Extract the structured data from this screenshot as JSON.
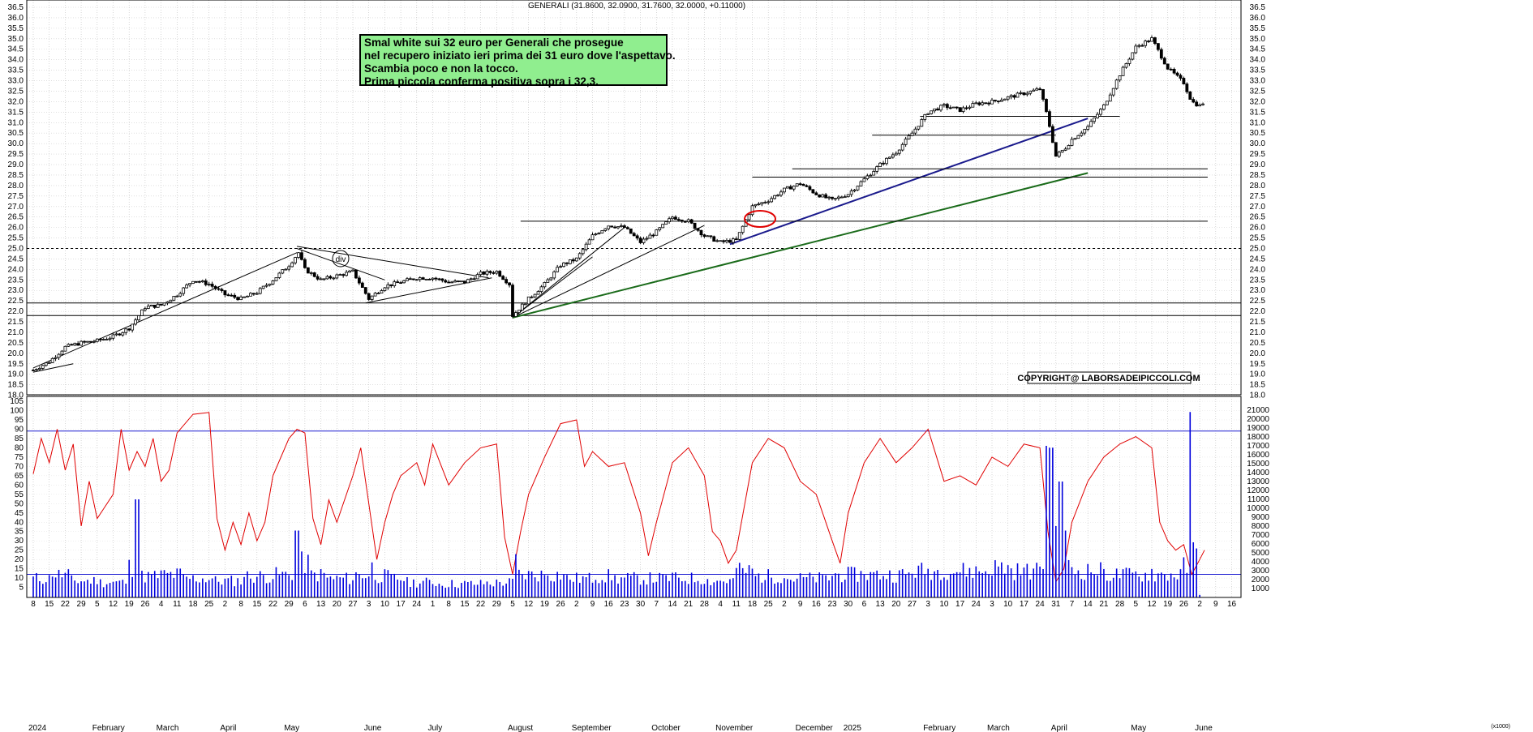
{
  "chart_title": "GENERALI (31.8600, 32.0900, 31.7600, 32.0000, +0.11000)",
  "note": {
    "lines": [
      "Smal white sui 32 euro per Generali che prosegue",
      "nel recupero iniziato ieri prima dei 31 euro dove l'aspettavo.",
      "Scambia poco e non la tocco.",
      "Prima piccola conferma positiva sopra i 32,3."
    ]
  },
  "copyright": "COPYRIGHT@ LABORSADEIPICCOLI.COM",
  "div_label": "div",
  "volume_unit": "(x1000)",
  "colors": {
    "candle": "#000000",
    "support_green": "#1a6b1a",
    "support_blue": "#1a1a8c",
    "rsi": "#e00000",
    "volume": "#0000dd",
    "note_bg": "#90ee8f",
    "marker": "#e00000"
  },
  "chart_data": {
    "type": "candlestick",
    "price_axis": {
      "ticks": [
        "36.5",
        "36.0",
        "35.5",
        "35.0",
        "34.5",
        "34.0",
        "33.5",
        "33.0",
        "32.5",
        "32.0",
        "31.5",
        "31.0",
        "30.5",
        "30.0",
        "29.5",
        "29.0",
        "28.5",
        "28.0",
        "27.5",
        "27.0",
        "26.5",
        "26.0",
        "25.5",
        "25.0",
        "24.5",
        "24.0",
        "23.5",
        "23.0",
        "22.5",
        "22.0",
        "21.5",
        "21.0",
        "20.5",
        "20.0",
        "19.5",
        "19.0",
        "18.5",
        "18.0"
      ],
      "range": [
        17.75,
        36.75
      ]
    },
    "oscillator_axis": {
      "ticks": [
        "105",
        "100",
        "95",
        "90",
        "85",
        "80",
        "75",
        "70",
        "65",
        "60",
        "55",
        "50",
        "45",
        "40",
        "35",
        "30",
        "25",
        "20",
        "15",
        "10",
        "5"
      ],
      "range": [
        2,
        107
      ],
      "upper_level": 89,
      "lower_level": 12
    },
    "volume_axis": {
      "ticks": [
        "21000",
        "20000",
        "19000",
        "18000",
        "17000",
        "16000",
        "15000",
        "14000",
        "13000",
        "12000",
        "11000",
        "10000",
        "9000",
        "8000",
        "7000",
        "6000",
        "5000",
        "4000",
        "3000",
        "2000",
        "1000"
      ],
      "range": [
        0,
        21500
      ]
    },
    "time_axis": {
      "day_labels": [
        "8",
        "15",
        "22",
        "29",
        "5",
        "12",
        "19",
        "26",
        "4",
        "11",
        "18",
        "25",
        "2",
        "8",
        "15",
        "22",
        "29",
        "6",
        "13",
        "20",
        "27",
        "3",
        "10",
        "17",
        "24",
        "1",
        "8",
        "15",
        "22",
        "29",
        "5",
        "12",
        "19",
        "26",
        "2",
        "9",
        "16",
        "23",
        "30",
        "7",
        "14",
        "21",
        "28",
        "4",
        "11",
        "18",
        "25",
        "2",
        "9",
        "16",
        "23",
        "30",
        "6",
        "13",
        "20",
        "27",
        "3",
        "10",
        "17",
        "24",
        "3",
        "10",
        "17",
        "24",
        "31",
        "7",
        "14",
        "21",
        "28",
        "5",
        "12",
        "19",
        "26",
        "2",
        "9",
        "16"
      ],
      "month_labels": [
        {
          "label": "2024",
          "day_index": 0
        },
        {
          "label": "February",
          "day_index": 4
        },
        {
          "label": "March",
          "day_index": 8
        },
        {
          "label": "April",
          "day_index": 12
        },
        {
          "label": "May",
          "day_index": 16
        },
        {
          "label": "June",
          "day_index": 21
        },
        {
          "label": "July",
          "day_index": 25
        },
        {
          "label": "August",
          "day_index": 30
        },
        {
          "label": "September",
          "day_index": 34
        },
        {
          "label": "October",
          "day_index": 39
        },
        {
          "label": "November",
          "day_index": 43
        },
        {
          "label": "December",
          "day_index": 48
        },
        {
          "label": "2025",
          "day_index": 51
        },
        {
          "label": "February",
          "day_index": 56
        },
        {
          "label": "March",
          "day_index": 60
        },
        {
          "label": "April",
          "day_index": 64
        },
        {
          "label": "May",
          "day_index": 69
        },
        {
          "label": "June",
          "day_index": 73
        }
      ]
    },
    "horizontal_levels": [
      25.0,
      22.4,
      21.8
    ],
    "price_path": [
      [
        0,
        19.2
      ],
      [
        1,
        19.6
      ],
      [
        2,
        20.3
      ],
      [
        3,
        20.5
      ],
      [
        4,
        20.6
      ],
      [
        5,
        20.8
      ],
      [
        6,
        21.2
      ],
      [
        7,
        22.2
      ],
      [
        8,
        22.3
      ],
      [
        9,
        22.8
      ],
      [
        10,
        23.5
      ],
      [
        11,
        23.3
      ],
      [
        12,
        22.8
      ],
      [
        13,
        22.6
      ],
      [
        14,
        22.9
      ],
      [
        15,
        23.5
      ],
      [
        16,
        24.2
      ],
      [
        16.6,
        24.8
      ],
      [
        17,
        24.0
      ],
      [
        18,
        23.5
      ],
      [
        19,
        23.7
      ],
      [
        20,
        23.9
      ],
      [
        21,
        22.6
      ],
      [
        22,
        23.2
      ],
      [
        23,
        23.4
      ],
      [
        24,
        23.6
      ],
      [
        25,
        23.6
      ],
      [
        26,
        23.4
      ],
      [
        27,
        23.4
      ],
      [
        28,
        23.8
      ],
      [
        29,
        23.9
      ],
      [
        29.8,
        23.3
      ],
      [
        30,
        21.8
      ],
      [
        31,
        22.6
      ],
      [
        32,
        23.3
      ],
      [
        33,
        24.2
      ],
      [
        34,
        24.5
      ],
      [
        35,
        25.6
      ],
      [
        36,
        26.1
      ],
      [
        37,
        26.0
      ],
      [
        38,
        25.3
      ],
      [
        39,
        25.8
      ],
      [
        40,
        26.5
      ],
      [
        41,
        26.3
      ],
      [
        42,
        25.6
      ],
      [
        43,
        25.3
      ],
      [
        44,
        25.4
      ],
      [
        45,
        27.0
      ],
      [
        46,
        27.3
      ],
      [
        47,
        27.8
      ],
      [
        48,
        28.1
      ],
      [
        49,
        27.6
      ],
      [
        50,
        27.3
      ],
      [
        51,
        27.6
      ],
      [
        52,
        28.3
      ],
      [
        53,
        29.0
      ],
      [
        54,
        29.6
      ],
      [
        55,
        30.5
      ],
      [
        56,
        31.5
      ],
      [
        57,
        31.8
      ],
      [
        58,
        31.6
      ],
      [
        59,
        31.9
      ],
      [
        60,
        32.0
      ],
      [
        61,
        32.2
      ],
      [
        62,
        32.4
      ],
      [
        63,
        32.6
      ],
      [
        63.5,
        31.2
      ],
      [
        64,
        29.4
      ],
      [
        64.6,
        29.8
      ],
      [
        65,
        30.2
      ],
      [
        66,
        30.8
      ],
      [
        67,
        31.8
      ],
      [
        68,
        33.3
      ],
      [
        69,
        34.6
      ],
      [
        70,
        35.0
      ],
      [
        71,
        33.6
      ],
      [
        72,
        32.9
      ],
      [
        72.5,
        32.0
      ],
      [
        73,
        31.8
      ],
      [
        73.3,
        32.0
      ]
    ],
    "trend_lines": [
      {
        "color": "#000000",
        "from": [
          0,
          19.1
        ],
        "to": [
          2.5,
          19.5
        ]
      },
      {
        "color": "#000000",
        "from": [
          0,
          19.3
        ],
        "to": [
          16.5,
          24.8
        ]
      },
      {
        "color": "#000000",
        "from": [
          16.5,
          25.1
        ],
        "to": [
          28.5,
          23.6
        ]
      },
      {
        "color": "#000000",
        "from": [
          16.5,
          25.0
        ],
        "to": [
          22,
          23.5
        ]
      },
      {
        "color": "#000000",
        "from": [
          20.8,
          22.4
        ],
        "to": [
          28.7,
          23.6
        ]
      },
      {
        "color": "#000000",
        "from": [
          30,
          21.7
        ],
        "to": [
          37,
          26.0
        ]
      },
      {
        "color": "#000000",
        "from": [
          30,
          21.7
        ],
        "to": [
          42,
          26.1
        ]
      },
      {
        "color": "#000000",
        "from": [
          30,
          21.7
        ],
        "to": [
          35,
          24.6
        ]
      },
      {
        "color": "#1a1a8c",
        "from": [
          43.6,
          25.2
        ],
        "to": [
          66,
          31.2
        ]
      },
      {
        "color": "#1a6b1a",
        "from": [
          30,
          21.7
        ],
        "to": [
          66,
          28.6
        ]
      },
      {
        "color": "#000000",
        "from": [
          45,
          28.4
        ],
        "to": [
          73.5,
          28.4
        ]
      },
      {
        "color": "#000000",
        "from": [
          47.5,
          28.8
        ],
        "to": [
          73.5,
          28.8
        ]
      },
      {
        "color": "#000000",
        "from": [
          52.5,
          30.4
        ],
        "to": [
          64,
          30.4
        ]
      },
      {
        "color": "#000000",
        "from": [
          55.5,
          31.3
        ],
        "to": [
          68,
          31.3
        ]
      },
      {
        "color": "#000000",
        "from": [
          30.5,
          26.3
        ],
        "to": [
          73.5,
          26.3
        ]
      }
    ],
    "rsi_path": [
      [
        0,
        66
      ],
      [
        0.5,
        85
      ],
      [
        1,
        72
      ],
      [
        1.5,
        90
      ],
      [
        2,
        68
      ],
      [
        2.5,
        82
      ],
      [
        3,
        38
      ],
      [
        3.5,
        62
      ],
      [
        4,
        42
      ],
      [
        5,
        55
      ],
      [
        5.5,
        90
      ],
      [
        6,
        68
      ],
      [
        6.5,
        78
      ],
      [
        7,
        70
      ],
      [
        7.5,
        85
      ],
      [
        8,
        62
      ],
      [
        8.5,
        68
      ],
      [
        9,
        88
      ],
      [
        10,
        98
      ],
      [
        11,
        99
      ],
      [
        11.5,
        42
      ],
      [
        12,
        25
      ],
      [
        12.5,
        40
      ],
      [
        13,
        28
      ],
      [
        13.5,
        45
      ],
      [
        14,
        30
      ],
      [
        14.5,
        40
      ],
      [
        15,
        65
      ],
      [
        16,
        85
      ],
      [
        16.5,
        90
      ],
      [
        17,
        88
      ],
      [
        17.5,
        42
      ],
      [
        18,
        28
      ],
      [
        18.5,
        52
      ],
      [
        19,
        40
      ],
      [
        20,
        65
      ],
      [
        20.5,
        80
      ],
      [
        21,
        50
      ],
      [
        21.5,
        20
      ],
      [
        22,
        40
      ],
      [
        22.5,
        55
      ],
      [
        23,
        65
      ],
      [
        24,
        72
      ],
      [
        24.5,
        60
      ],
      [
        25,
        82
      ],
      [
        26,
        60
      ],
      [
        27,
        72
      ],
      [
        28,
        80
      ],
      [
        29,
        82
      ],
      [
        29.5,
        32
      ],
      [
        30,
        12
      ],
      [
        30.5,
        35
      ],
      [
        31,
        55
      ],
      [
        32,
        75
      ],
      [
        33,
        93
      ],
      [
        34,
        95
      ],
      [
        34.5,
        70
      ],
      [
        35,
        78
      ],
      [
        36,
        70
      ],
      [
        37,
        72
      ],
      [
        38,
        45
      ],
      [
        38.5,
        22
      ],
      [
        39,
        40
      ],
      [
        40,
        72
      ],
      [
        41,
        80
      ],
      [
        42,
        65
      ],
      [
        42.5,
        35
      ],
      [
        43,
        30
      ],
      [
        43.5,
        18
      ],
      [
        44,
        25
      ],
      [
        45,
        72
      ],
      [
        46,
        85
      ],
      [
        47,
        80
      ],
      [
        48,
        62
      ],
      [
        49,
        55
      ],
      [
        50,
        30
      ],
      [
        50.5,
        18
      ],
      [
        51,
        45
      ],
      [
        52,
        72
      ],
      [
        53,
        85
      ],
      [
        54,
        72
      ],
      [
        55,
        80
      ],
      [
        56,
        90
      ],
      [
        57,
        62
      ],
      [
        58,
        65
      ],
      [
        59,
        60
      ],
      [
        60,
        75
      ],
      [
        61,
        70
      ],
      [
        62,
        82
      ],
      [
        63,
        80
      ],
      [
        63.5,
        35
      ],
      [
        64,
        8
      ],
      [
        64.5,
        15
      ],
      [
        65,
        40
      ],
      [
        66,
        62
      ],
      [
        67,
        75
      ],
      [
        68,
        82
      ],
      [
        69,
        86
      ],
      [
        70,
        80
      ],
      [
        70.5,
        40
      ],
      [
        71,
        30
      ],
      [
        71.5,
        25
      ],
      [
        72,
        28
      ],
      [
        72.5,
        12
      ],
      [
        73,
        20
      ],
      [
        73.3,
        25
      ]
    ],
    "volume_spikes": [
      [
        0,
        2500
      ],
      [
        1,
        3500
      ],
      [
        2,
        3000
      ],
      [
        3,
        2200
      ],
      [
        4,
        2400
      ],
      [
        5,
        2000
      ],
      [
        6,
        4000
      ],
      [
        6.5,
        11000
      ],
      [
        7,
        2800
      ],
      [
        8,
        3000
      ],
      [
        9,
        3200
      ],
      [
        10,
        2500
      ],
      [
        11,
        2500
      ],
      [
        12,
        2200
      ],
      [
        13,
        3000
      ],
      [
        14,
        2800
      ],
      [
        15,
        3000
      ],
      [
        16,
        3200
      ],
      [
        16.5,
        7500
      ],
      [
        17,
        4500
      ],
      [
        18,
        3000
      ],
      [
        19,
        2500
      ],
      [
        20,
        3000
      ],
      [
        21,
        4000
      ],
      [
        22,
        2800
      ],
      [
        23,
        2500
      ],
      [
        24,
        2000
      ],
      [
        25,
        2000
      ],
      [
        26,
        1800
      ],
      [
        27,
        1800
      ],
      [
        28,
        1900
      ],
      [
        29,
        2000
      ],
      [
        30,
        5000
      ],
      [
        31,
        3000
      ],
      [
        32,
        3500
      ],
      [
        33,
        3000
      ],
      [
        34,
        2500
      ],
      [
        35,
        3000
      ],
      [
        36,
        2800
      ],
      [
        37,
        2500
      ],
      [
        38,
        3000
      ],
      [
        39,
        2500
      ],
      [
        40,
        2800
      ],
      [
        41,
        2500
      ],
      [
        42,
        2500
      ],
      [
        43,
        2200
      ],
      [
        44,
        4000
      ],
      [
        45,
        3500
      ],
      [
        46,
        2800
      ],
      [
        47,
        3200
      ],
      [
        48,
        2500
      ],
      [
        49,
        2500
      ],
      [
        50,
        3000
      ],
      [
        51,
        3000
      ],
      [
        52,
        3500
      ],
      [
        53,
        3000
      ],
      [
        54,
        3000
      ],
      [
        55,
        3500
      ],
      [
        56,
        3500
      ],
      [
        57,
        4000
      ],
      [
        58,
        3500
      ],
      [
        59,
        3500
      ],
      [
        60,
        4000
      ],
      [
        61,
        4000
      ],
      [
        62,
        3500
      ],
      [
        63,
        4500
      ],
      [
        63.4,
        17000
      ],
      [
        63.7,
        16800
      ],
      [
        64,
        8000
      ],
      [
        64.3,
        13000
      ],
      [
        64.6,
        7500
      ],
      [
        65,
        4000
      ],
      [
        66,
        3500
      ],
      [
        67,
        3500
      ],
      [
        68,
        3000
      ],
      [
        69,
        3000
      ],
      [
        70,
        3500
      ],
      [
        71,
        3000
      ],
      [
        72,
        4000
      ],
      [
        72.4,
        20800
      ],
      [
        72.7,
        6000
      ],
      [
        73,
        500
      ]
    ]
  }
}
